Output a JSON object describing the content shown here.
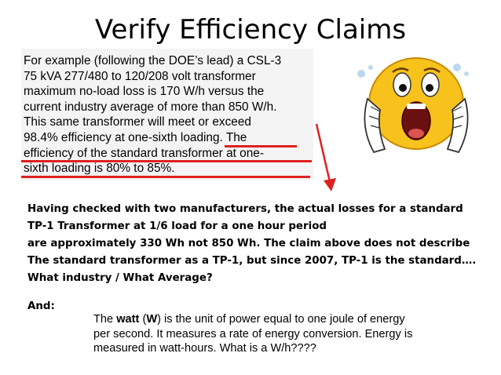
{
  "title": "Verify Efficiency Claims",
  "quote": {
    "lines": [
      "For example (following the DOE’s lead) a CSL-3",
      "75 kVA 277/480 to 120/208 volt transformer",
      "maximum no-load loss is 170 W/h versus the",
      "current industry average of more than 850 W/h.",
      "This same transformer will meet or exceed",
      "98.4% efficiency at one-sixth loading. The",
      "efficiency of the standard transformer at one-",
      "sixth loading is 80% to 85%."
    ]
  },
  "body": {
    "lines": [
      "Having checked with two manufacturers, the actual losses for a standard",
      "TP-1 Transformer at 1/6 load for a one hour period",
      "are approximately 330 Wh not 850 Wh.   The claim above does not describe",
      "The standard transformer as a TP-1, but since 2007, TP-1 is the standard….",
      "What industry /  What Average?"
    ],
    "and_label": "And:"
  },
  "watt": {
    "pre": "The ",
    "word": "watt",
    "mid1": " (",
    "symbol": "W",
    "line1_rest": ") is the unit of  power equal to one joule of energy",
    "line2": "per second. It measures a rate of energy conversion.  Energy is",
    "line3": "measured in watt-hours.  What is a W/h????"
  },
  "colors": {
    "underline": "#e02020",
    "face": "#f7c21b",
    "quote_background": "#f4f4f4"
  },
  "icons": {
    "emoji": "screaming-face-icon",
    "arrow": "red-arrow-icon"
  }
}
